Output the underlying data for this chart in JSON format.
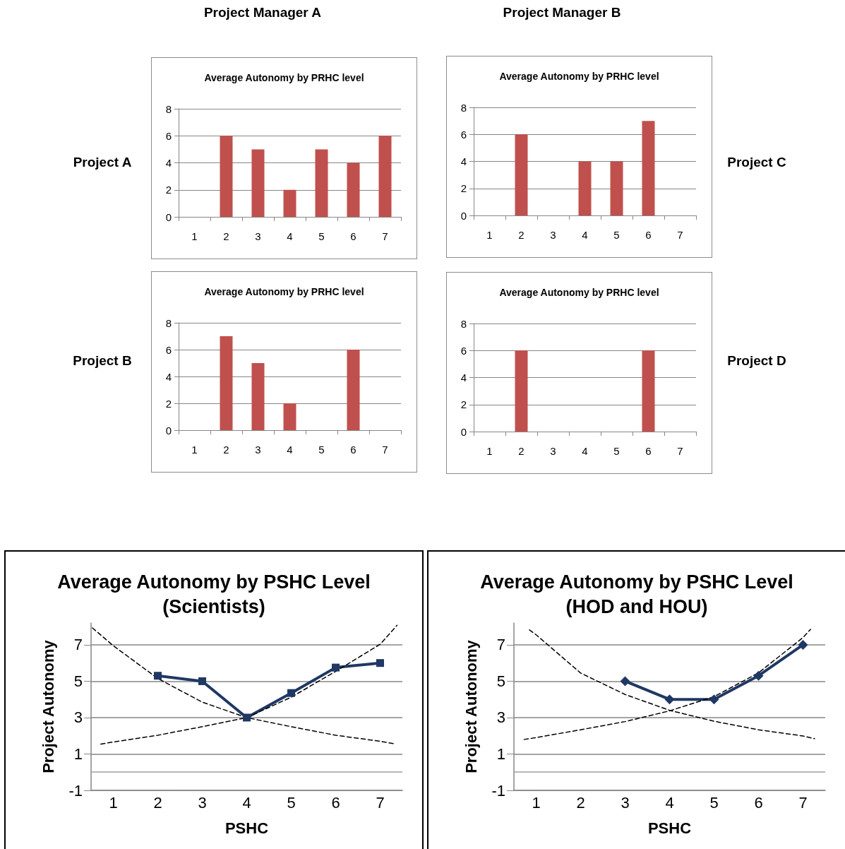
{
  "chart_data": [
    {
      "type": "bar",
      "title": "Average Autonomy by PRHC level",
      "annotations": [
        "Project Manager A",
        "Project A"
      ],
      "categories": [
        "1",
        "2",
        "3",
        "4",
        "5",
        "6",
        "7"
      ],
      "values": [
        null,
        6,
        5,
        2,
        5,
        4,
        6
      ],
      "color": "#c0504d",
      "ylim": [
        0,
        8
      ],
      "yticks": [
        0,
        2,
        4,
        6,
        8
      ],
      "grid": "y"
    },
    {
      "type": "bar",
      "title": "Average Autonomy by PRHC level",
      "annotations": [
        "Project Manager B",
        "Project C"
      ],
      "categories": [
        "1",
        "2",
        "3",
        "4",
        "5",
        "6",
        "7"
      ],
      "values": [
        null,
        6,
        null,
        4,
        4,
        7,
        null
      ],
      "color": "#c0504d",
      "ylim": [
        0,
        8
      ],
      "yticks": [
        0,
        2,
        4,
        6,
        8
      ],
      "grid": "y"
    },
    {
      "type": "bar",
      "title": "Average Autonomy by PRHC level",
      "annotations": [
        "Project B"
      ],
      "categories": [
        "1",
        "2",
        "3",
        "4",
        "5",
        "6",
        "7"
      ],
      "values": [
        null,
        7,
        5,
        2,
        null,
        6,
        null
      ],
      "color": "#c0504d",
      "ylim": [
        0,
        8
      ],
      "yticks": [
        0,
        2,
        4,
        6,
        8
      ],
      "grid": "y"
    },
    {
      "type": "bar",
      "title": "Average Autonomy by PRHC level",
      "annotations": [
        "Project D"
      ],
      "categories": [
        "1",
        "2",
        "3",
        "4",
        "5",
        "6",
        "7"
      ],
      "values": [
        null,
        6,
        null,
        null,
        null,
        6,
        null
      ],
      "color": "#c0504d",
      "ylim": [
        0,
        8
      ],
      "yticks": [
        0,
        2,
        4,
        6,
        8
      ],
      "grid": "y"
    },
    {
      "type": "line",
      "title": "Average Autonomy by PSHC Level",
      "subtitle": "(Scientists)",
      "xlabel": "PSHC",
      "ylabel": "Project Autonomy",
      "xlim": [
        0.5,
        7.5
      ],
      "xticks": [
        1,
        2,
        3,
        4,
        5,
        6,
        7
      ],
      "ylim": [
        -1,
        8.2
      ],
      "yticks": [
        -1,
        1,
        3,
        5,
        7
      ],
      "grid": "y",
      "marker": "square",
      "line_style": "solid",
      "ref_lines": [
        {
          "axis": "y",
          "value": 0,
          "color": "#a0a0a0"
        }
      ],
      "series": [
        {
          "color": "#1f3864",
          "x": [
            2,
            3,
            4,
            5,
            6,
            7
          ],
          "values": [
            5.3,
            5.0,
            3.0,
            4.35,
            5.75,
            6.0
          ]
        },
        {
          "type": "line",
          "x": [
            0.53,
            1,
            2,
            3,
            4,
            5,
            6,
            7,
            7.35
          ],
          "values": [
            7.93,
            6.95,
            5.15,
            3.85,
            3.0,
            2.5,
            2.03,
            1.7,
            1.55
          ],
          "color": "#000000",
          "line_style": "dashed",
          "marker": "none"
        },
        {
          "type": "line",
          "x": [
            0.72,
            1,
            2,
            3,
            4,
            5,
            6,
            7,
            7.38
          ],
          "values": [
            1.54,
            1.66,
            2.03,
            2.5,
            3.0,
            4.12,
            5.54,
            7.03,
            8.07
          ],
          "color": "#000000",
          "line_style": "dashed",
          "marker": "none"
        }
      ]
    },
    {
      "type": "line",
      "title": "Average Autonomy by PSHC Level",
      "subtitle": "(HOD and HOU)",
      "xlabel": "PSHC",
      "ylabel": "Project Autonomy",
      "xlim": [
        0.5,
        7.5
      ],
      "xticks": [
        1,
        2,
        3,
        4,
        5,
        6,
        7
      ],
      "ylim": [
        -1,
        8.2
      ],
      "yticks": [
        -1,
        1,
        3,
        5,
        7
      ],
      "grid": "y",
      "marker": "diamond",
      "line_style": "solid",
      "ref_lines": [
        {
          "axis": "y",
          "value": 0,
          "color": "#a0a0a0"
        }
      ],
      "series": [
        {
          "color": "#1f3864",
          "x": [
            3,
            4,
            5,
            6,
            7
          ],
          "values": [
            5.0,
            4.0,
            4.0,
            5.3,
            7.0
          ]
        },
        {
          "type": "line",
          "x": [
            0.85,
            1,
            2,
            3,
            4,
            5,
            6,
            7,
            7.26
          ],
          "values": [
            7.82,
            7.55,
            5.45,
            4.27,
            3.4,
            2.8,
            2.33,
            1.99,
            1.84
          ],
          "color": "#000000",
          "line_style": "dashed",
          "marker": "none"
        },
        {
          "type": "line",
          "x": [
            0.73,
            1,
            2,
            3,
            4,
            5,
            6,
            7,
            7.17
          ],
          "values": [
            1.8,
            1.9,
            2.33,
            2.78,
            3.37,
            4.15,
            5.46,
            7.4,
            7.85
          ],
          "color": "#000000",
          "line_style": "dashed",
          "marker": "none"
        }
      ]
    }
  ]
}
